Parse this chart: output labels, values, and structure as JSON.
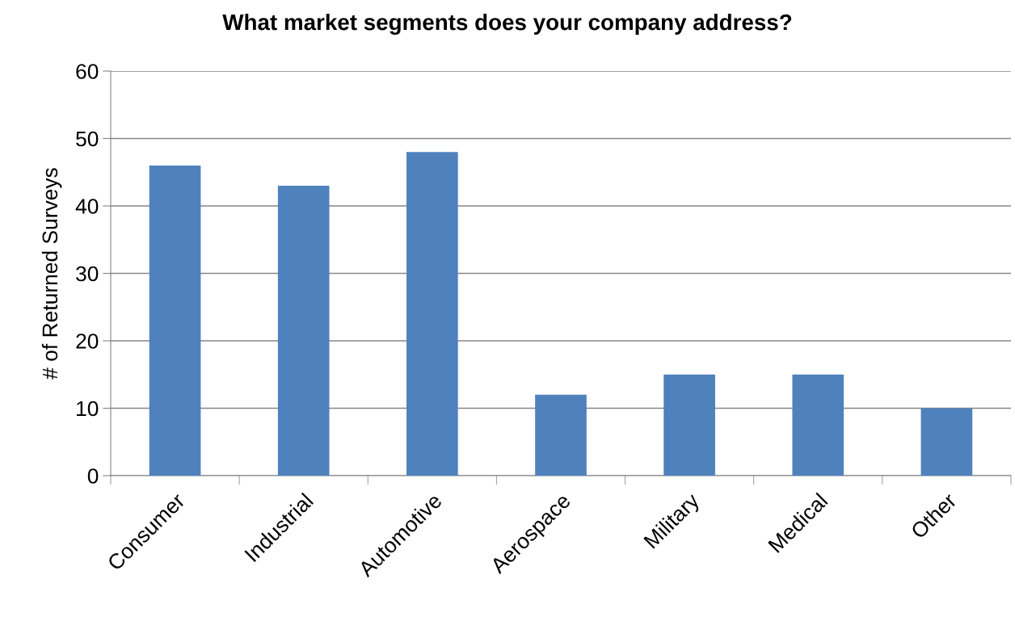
{
  "chart_data": {
    "type": "bar",
    "title": "What market segments does your company address?",
    "ylabel": "# of Returned Surveys",
    "categories": [
      "Consumer",
      "Industrial",
      "Automotive",
      "Aerospace",
      "Military",
      "Medical",
      "Other"
    ],
    "values": [
      46,
      43,
      48,
      12,
      15,
      15,
      10
    ],
    "color": "#4f81bd",
    "ylim": [
      0,
      60
    ],
    "yticks": [
      0,
      10,
      20,
      30,
      40,
      50,
      60
    ],
    "grid": "y",
    "legend": false
  }
}
